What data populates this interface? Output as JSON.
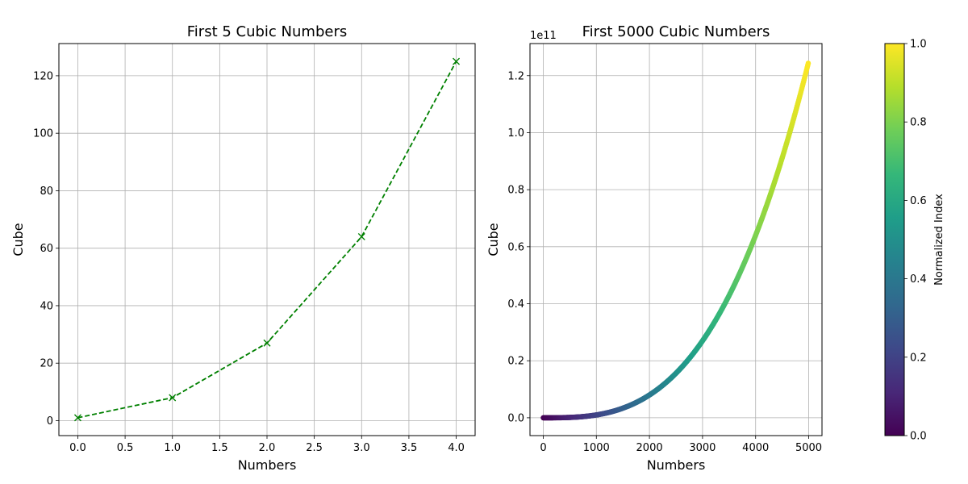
{
  "chart_data": [
    {
      "type": "line",
      "title": "First 5 Cubic Numbers",
      "xlabel": "Numbers",
      "ylabel": "Cube",
      "x": [
        0,
        1,
        2,
        3,
        4
      ],
      "y": [
        1,
        8,
        27,
        64,
        125
      ],
      "line_color": "#008000",
      "line_style": "dashed",
      "marker": "x",
      "xlim": [
        -0.2,
        4.2
      ],
      "ylim": [
        -5.2,
        131.2
      ],
      "xticks": [
        0.0,
        0.5,
        1.0,
        1.5,
        2.0,
        2.5,
        3.0,
        3.5,
        4.0
      ],
      "xticklabels": [
        "0.0",
        "0.5",
        "1.0",
        "1.5",
        "2.0",
        "2.5",
        "3.0",
        "3.5",
        "4.0"
      ],
      "yticks": [
        0,
        20,
        40,
        60,
        80,
        100,
        120
      ],
      "yticklabels": [
        "0",
        "20",
        "40",
        "60",
        "80",
        "100",
        "120"
      ],
      "grid": true
    },
    {
      "type": "scatter",
      "title": "First 5000 Cubic Numbers",
      "xlabel": "Numbers",
      "ylabel": "Cube",
      "x_range": [
        1,
        5000
      ],
      "y_formula": "x^3",
      "y_offset_label": "1e11",
      "colormap": "viridis",
      "color_by": "normalized index",
      "xlim": [
        -250,
        5250
      ],
      "ylim": [
        -6250000000.0,
        131250000000.0
      ],
      "xticks": [
        0,
        1000,
        2000,
        3000,
        4000,
        5000
      ],
      "xticklabels": [
        "0",
        "1000",
        "2000",
        "3000",
        "4000",
        "5000"
      ],
      "yticks": [
        0,
        20000000000.0,
        40000000000.0,
        60000000000.0,
        80000000000.0,
        100000000000.0,
        120000000000.0
      ],
      "yticklabels": [
        "0.0",
        "0.2",
        "0.4",
        "0.6",
        "0.8",
        "1.0",
        "1.2"
      ],
      "grid": true
    }
  ],
  "colorbar": {
    "label": "Normalized Index",
    "range": [
      0,
      1
    ],
    "ticks": [
      0.0,
      0.2,
      0.4,
      0.6,
      0.8,
      1.0
    ],
    "ticklabels": [
      "0.0",
      "0.2",
      "0.4",
      "0.6",
      "0.8",
      "1.0"
    ],
    "colormap_stops": [
      "#440154",
      "#482878",
      "#3e4989",
      "#31688e",
      "#26828e",
      "#1f9e89",
      "#35b779",
      "#6ece58",
      "#b5de2b",
      "#fde725"
    ]
  }
}
